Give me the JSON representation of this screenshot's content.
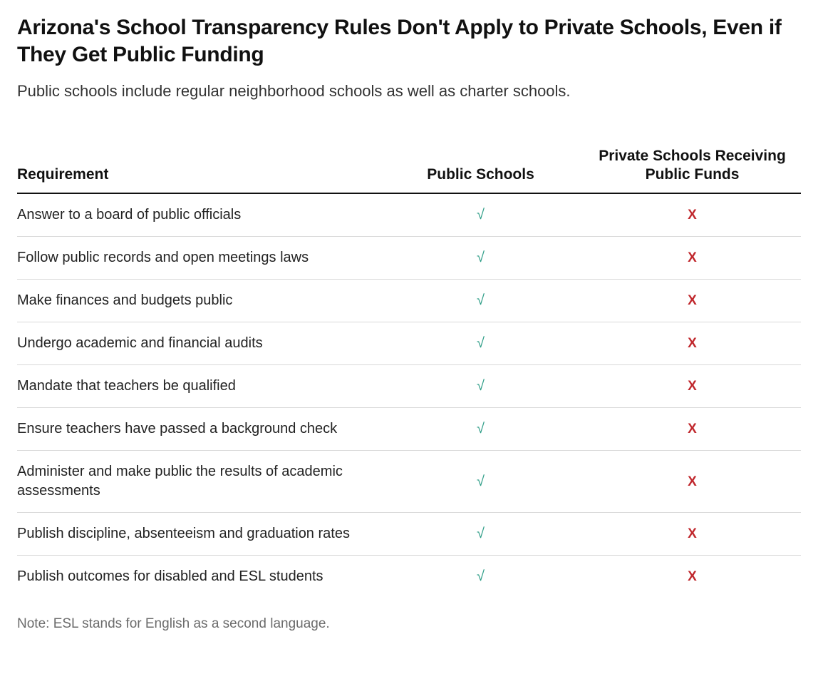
{
  "title": "Arizona's School Transparency Rules Don't Apply to Private Schools, Even if They Get Public Funding",
  "subtitle": "Public schools include regular neighborhood schools as well as charter schools.",
  "columns": {
    "requirement": "Requirement",
    "public": "Public Schools",
    "private": "Private Schools Receiving Public Funds"
  },
  "glyphs": {
    "check": "√",
    "cross": "X"
  },
  "colors": {
    "check": "#2e9d87",
    "cross": "#c0282d",
    "text": "#111111",
    "subtitle": "#333333",
    "note": "#6b6b6b",
    "row_border": "#d9d9d9",
    "header_border": "#111111",
    "background": "#ffffff"
  },
  "rows": [
    {
      "requirement": "Answer to a board of public officials",
      "public": true,
      "private": false
    },
    {
      "requirement": "Follow public records and open meetings laws",
      "public": true,
      "private": false
    },
    {
      "requirement": "Make finances and budgets public",
      "public": true,
      "private": false
    },
    {
      "requirement": "Undergo academic and financial audits",
      "public": true,
      "private": false
    },
    {
      "requirement": "Mandate that teachers be qualified",
      "public": true,
      "private": false
    },
    {
      "requirement": "Ensure teachers have passed a background check",
      "public": true,
      "private": false
    },
    {
      "requirement": "Administer and make public the results of academic assessments",
      "public": true,
      "private": false
    },
    {
      "requirement": "Publish discipline, absenteeism and graduation rates",
      "public": true,
      "private": false
    },
    {
      "requirement": "Publish outcomes for disabled and ESL students",
      "public": true,
      "private": false
    }
  ],
  "note": "Note: ESL stands for English as a second language."
}
